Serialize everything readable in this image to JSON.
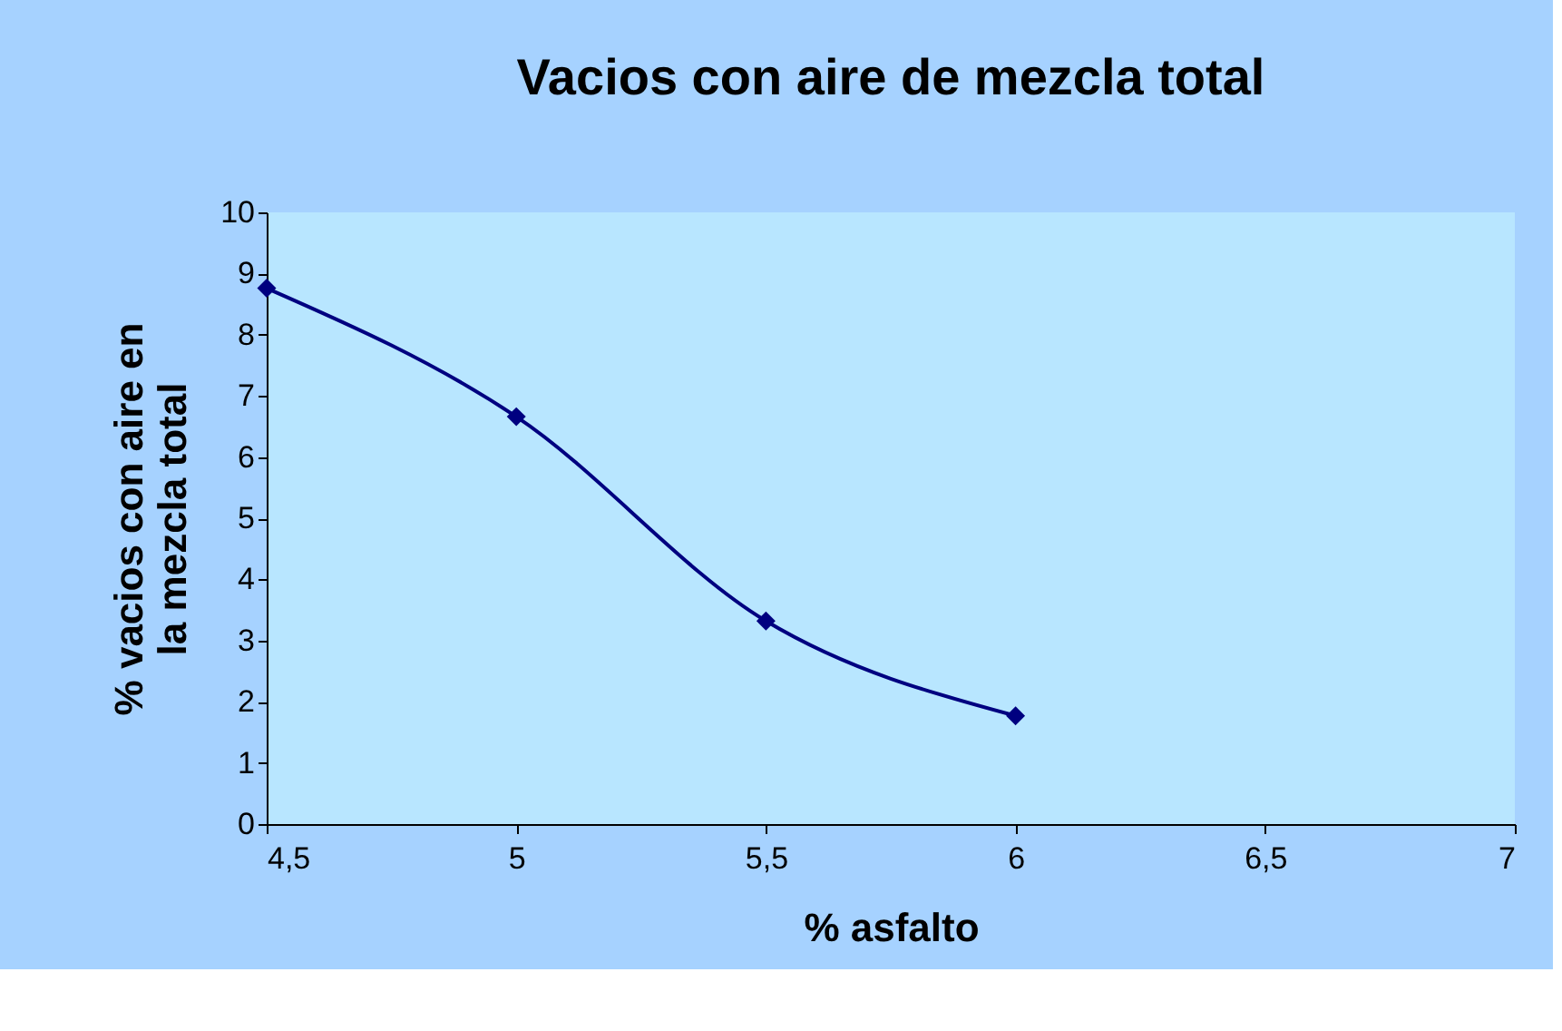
{
  "chart_data": {
    "type": "line",
    "title": "Vacios con aire de mezcla total",
    "xlabel": "% asfalto",
    "ylabel": "% vacios con aire en la mezcla total",
    "x": [
      4.5,
      5,
      5.5,
      6
    ],
    "series": [
      {
        "color": "#000080",
        "values": [
          8.76,
          6.66,
          3.32,
          1.77
        ]
      }
    ],
    "xlim": [
      4.5,
      7
    ],
    "xticks": [
      {
        "value": 4.5,
        "label": "4,5"
      },
      5,
      {
        "value": 5.5,
        "label": "5,5"
      },
      6,
      {
        "value": 6.5,
        "label": "6,5"
      },
      7
    ],
    "ylim": [
      0,
      10
    ],
    "yticks": [
      0,
      1,
      2,
      3,
      4,
      5,
      6,
      7,
      8,
      9,
      10
    ],
    "grid": false,
    "marker": "diamond",
    "line_style": "solid"
  }
}
